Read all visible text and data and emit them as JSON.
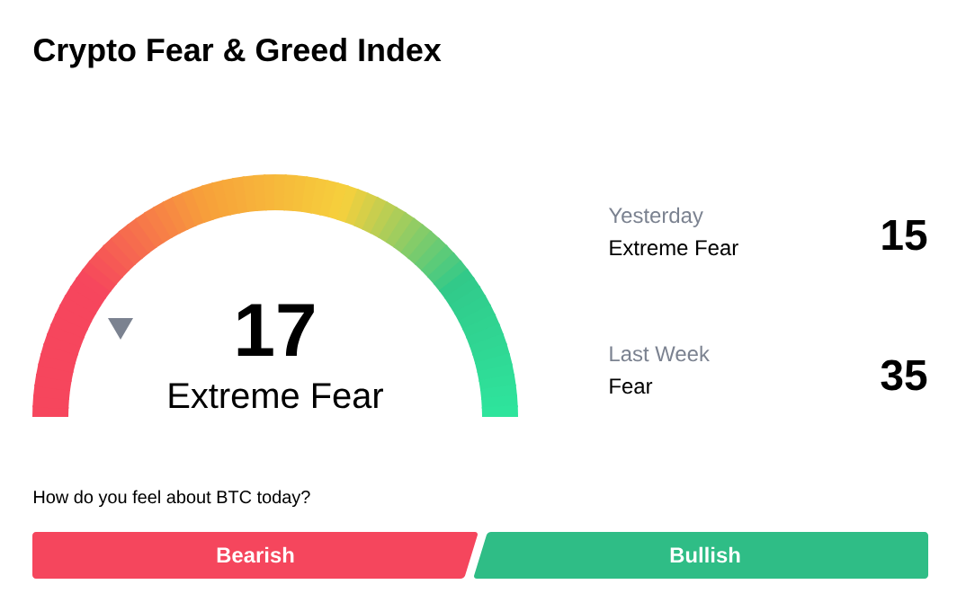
{
  "chart_data": {
    "type": "other",
    "title": "Crypto Fear & Greed Index",
    "values": [
      17,
      15,
      35
    ],
    "data_labels": true,
    "annotations": [
      "Extreme Fear",
      "Yesterday",
      "Extreme Fear",
      "Last Week",
      "Fear",
      "How do you feel about BTC today?",
      "Bearish",
      "Bullish"
    ]
  }
}
